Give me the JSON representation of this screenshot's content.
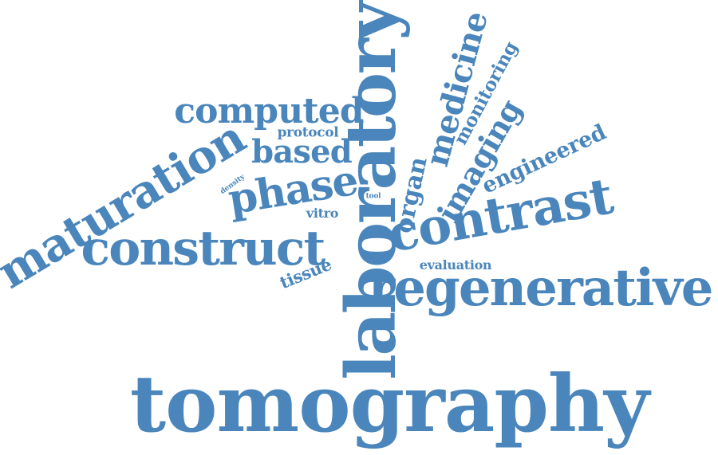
{
  "word_cloud": {
    "color": "#4a86bb",
    "words": [
      {
        "id": "tomography",
        "text": "tomography"
      },
      {
        "id": "laboratory",
        "text": "laboratory"
      },
      {
        "id": "regenerative",
        "text": "regenerative"
      },
      {
        "id": "contrast",
        "text": "contrast"
      },
      {
        "id": "construct",
        "text": "construct"
      },
      {
        "id": "maturation",
        "text": "maturation"
      },
      {
        "id": "computed",
        "text": "computed"
      },
      {
        "id": "phase",
        "text": "phase"
      },
      {
        "id": "based",
        "text": "based"
      },
      {
        "id": "medicine",
        "text": "medicine"
      },
      {
        "id": "imaging",
        "text": "imaging"
      },
      {
        "id": "engineered",
        "text": "engineered"
      },
      {
        "id": "monitoring",
        "text": "monitoring"
      },
      {
        "id": "organ",
        "text": "organ"
      },
      {
        "id": "tissue",
        "text": "tissue"
      },
      {
        "id": "evaluation",
        "text": "evaluation"
      },
      {
        "id": "vitro",
        "text": "vitro"
      },
      {
        "id": "protocol",
        "text": "protocol"
      },
      {
        "id": "density",
        "text": "density"
      },
      {
        "id": "tool",
        "text": "tool"
      }
    ]
  }
}
